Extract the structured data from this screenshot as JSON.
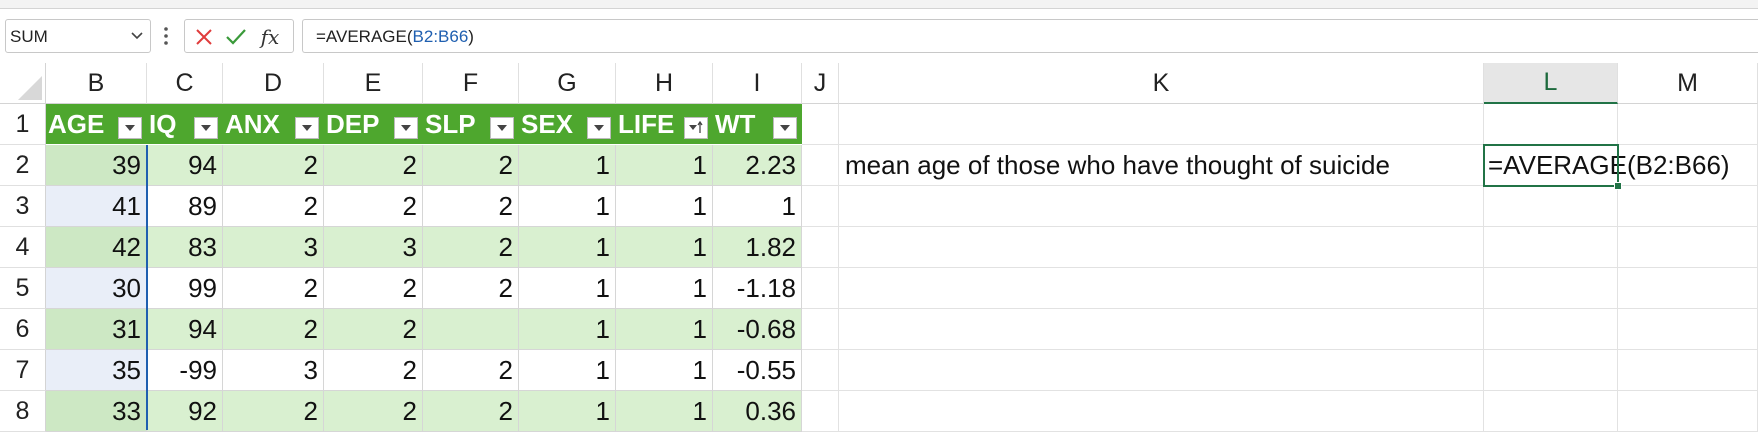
{
  "formula_bar": {
    "name_box": "SUM",
    "formula_prefix": "=AVERAGE(",
    "formula_ref": "B2:B66",
    "formula_suffix": ")",
    "cancel_icon": "x-icon",
    "enter_icon": "check-icon",
    "function_icon": "fx-icon",
    "fx_label": "fx"
  },
  "columns": [
    "B",
    "C",
    "D",
    "E",
    "F",
    "G",
    "H",
    "I",
    "J",
    "K",
    "L",
    "M"
  ],
  "rows": [
    "1",
    "2",
    "3",
    "4",
    "5",
    "6",
    "7",
    "8"
  ],
  "table": {
    "headers": [
      "AGE",
      "IQ",
      "ANX",
      "DEP",
      "SLP",
      "SEX",
      "LIFE",
      "WT"
    ],
    "data": [
      [
        "39",
        "94",
        "2",
        "2",
        "2",
        "1",
        "1",
        "2.23"
      ],
      [
        "41",
        "89",
        "2",
        "2",
        "2",
        "1",
        "1",
        "1"
      ],
      [
        "42",
        "83",
        "3",
        "3",
        "2",
        "1",
        "1",
        "1.82"
      ],
      [
        "30",
        "99",
        "2",
        "2",
        "2",
        "1",
        "1",
        "-1.18"
      ],
      [
        "31",
        "94",
        "2",
        "2",
        "",
        "1",
        "1",
        "-0.68"
      ],
      [
        "35",
        "-99",
        "3",
        "2",
        "2",
        "1",
        "1",
        "-0.55"
      ],
      [
        "33",
        "92",
        "2",
        "2",
        "2",
        "1",
        "1",
        "0.36"
      ]
    ]
  },
  "k2_text": "mean age of those who have thought of suicide",
  "l2_formula": "=AVERAGE(B2:B66)",
  "colors": {
    "header_green": "#4ea72e",
    "band_green": "#d9f0d0",
    "active_border": "#217346",
    "ref_blue": "#1f5fb0"
  }
}
